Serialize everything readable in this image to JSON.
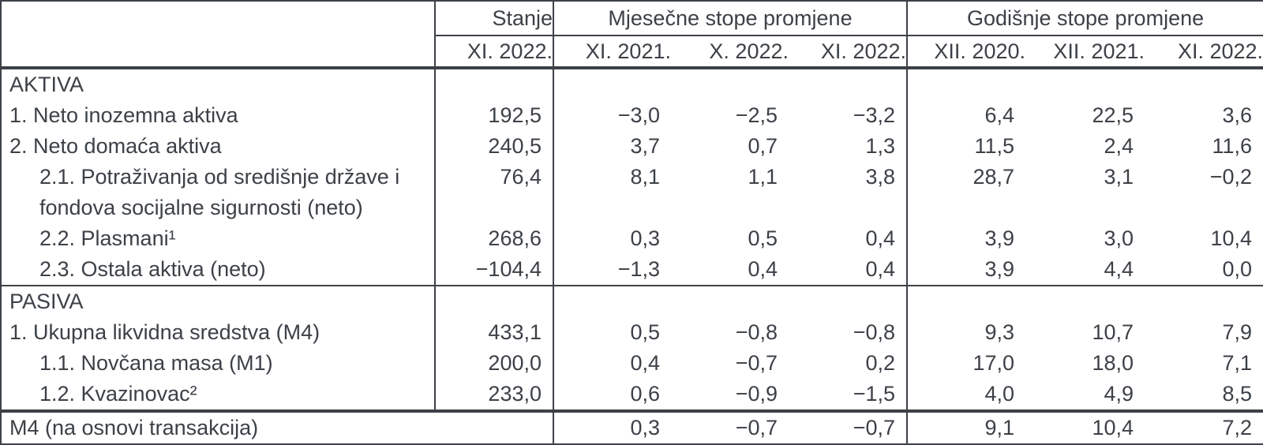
{
  "colors": {
    "text": "#3c4147",
    "border": "#3c4147",
    "background": "#ffffff"
  },
  "table": {
    "header": {
      "stanje": "Stanje",
      "monthly_group": "Mjesečne stope promjene",
      "yearly_group": "Godišnje stope promjene",
      "periods": [
        "XI. 2022.",
        "XI. 2021.",
        "X. 2022.",
        "XI. 2022.",
        "XII. 2020.",
        "XII. 2021.",
        "XI. 2022."
      ]
    },
    "rows": [
      {
        "type": "section",
        "label": "AKTIVA",
        "indent": 0,
        "values": [
          "",
          "",
          "",
          "",
          "",
          "",
          ""
        ]
      },
      {
        "type": "item",
        "label": "1. Neto inozemna aktiva",
        "indent": 0,
        "values": [
          "192,5",
          "−3,0",
          "−2,5",
          "−3,2",
          "6,4",
          "22,5",
          "3,6"
        ]
      },
      {
        "type": "item",
        "label": "2. Neto domaća aktiva",
        "indent": 0,
        "values": [
          "240,5",
          "3,7",
          "0,7",
          "1,3",
          "11,5",
          "2,4",
          "11,6"
        ]
      },
      {
        "type": "item",
        "label": "2.1. Potraživanja od središnje države i",
        "label2": "fondova socijalne sigurnosti (neto)",
        "indent": 1,
        "values": [
          "76,4",
          "8,1",
          "1,1",
          "3,8",
          "28,7",
          "3,1",
          "−0,2"
        ]
      },
      {
        "type": "item",
        "label": "2.2. Plasmani¹",
        "indent": 1,
        "values": [
          "268,6",
          "0,3",
          "0,5",
          "0,4",
          "3,9",
          "3,0",
          "10,4"
        ]
      },
      {
        "type": "item",
        "label": "2.3. Ostala aktiva (neto)",
        "indent": 1,
        "values": [
          "−104,4",
          "−1,3",
          "0,4",
          "0,4",
          "3,9",
          "4,4",
          "0,0"
        ]
      },
      {
        "type": "section",
        "label": "PASIVA",
        "indent": 0,
        "values": [
          "",
          "",
          "",
          "",
          "",
          "",
          ""
        ]
      },
      {
        "type": "item",
        "label": "1. Ukupna likvidna sredstva (M4)",
        "indent": 0,
        "values": [
          "433,1",
          "0,5",
          "−0,8",
          "−0,8",
          "9,3",
          "10,7",
          "7,9"
        ]
      },
      {
        "type": "item",
        "label": "1.1. Novčana masa (M1)",
        "indent": 1,
        "values": [
          "200,0",
          "0,4",
          "−0,7",
          "0,2",
          "17,0",
          "18,0",
          "7,1"
        ]
      },
      {
        "type": "item",
        "label": "1.2. Kvazinovac²",
        "indent": 1,
        "values": [
          "233,0",
          "0,6",
          "−0,9",
          "−1,5",
          "4,0",
          "4,9",
          "8,5"
        ]
      },
      {
        "type": "footer",
        "label": "M4 (na osnovi transakcija)",
        "indent": 0,
        "values": [
          "0,3",
          "−0,7",
          "−0,7",
          "9,1",
          "10,4",
          "7,2"
        ]
      }
    ]
  }
}
